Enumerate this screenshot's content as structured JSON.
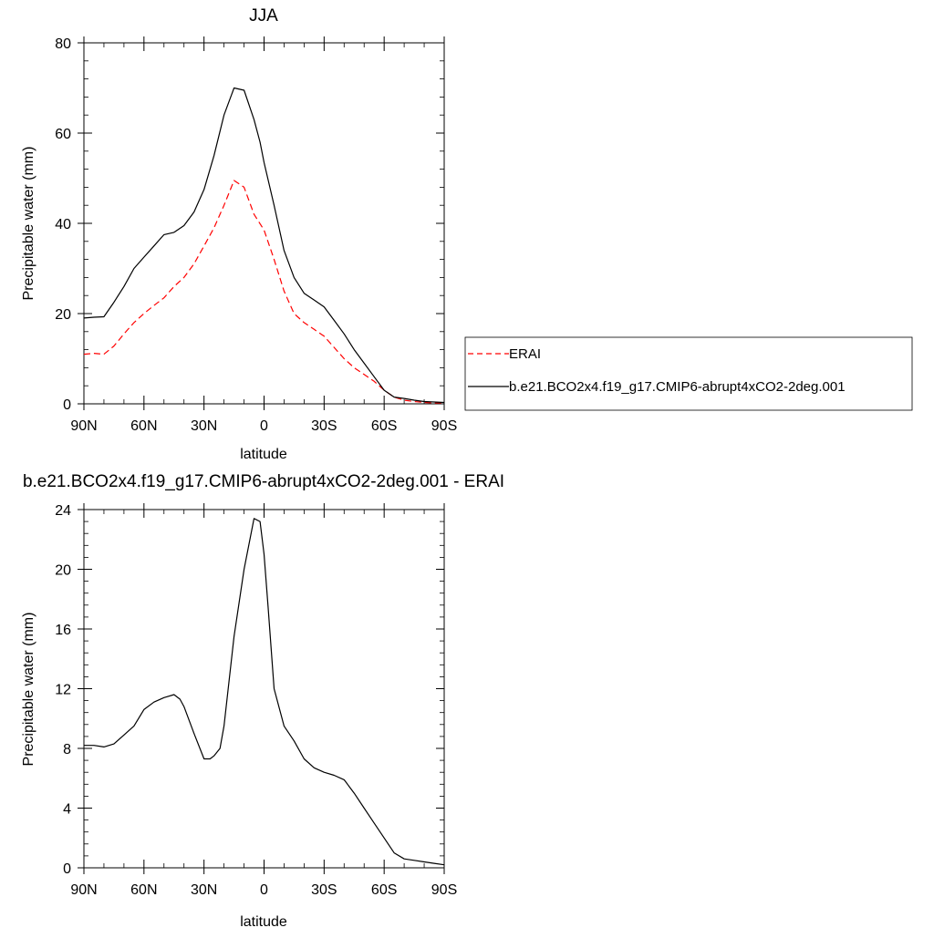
{
  "chart_data": [
    {
      "type": "line",
      "title": "JJA",
      "xlabel": "latitude",
      "ylabel": "Precipitable water (mm)",
      "xlim": [
        90,
        -90
      ],
      "ylim": [
        0,
        80
      ],
      "x_ticks": [
        90,
        60,
        30,
        0,
        -30,
        -60,
        -90
      ],
      "x_tick_labels": [
        "90N",
        "60N",
        "30N",
        "0",
        "30S",
        "60S",
        "90S"
      ],
      "y_ticks": [
        0,
        20,
        40,
        60,
        80
      ],
      "y_tick_labels": [
        "0",
        "20",
        "40",
        "60",
        "80"
      ],
      "legend_position": "right",
      "series": [
        {
          "name": "ERAI",
          "color": "#ff0000",
          "dash": "dashed",
          "x": [
            90,
            85,
            80,
            75,
            70,
            65,
            60,
            55,
            50,
            45,
            40,
            35,
            30,
            25,
            20,
            15,
            10,
            5,
            0,
            -5,
            -10,
            -15,
            -20,
            -25,
            -30,
            -35,
            -40,
            -45,
            -50,
            -55,
            -60,
            -65,
            -70,
            -75,
            -80,
            -85,
            -90
          ],
          "y": [
            11,
            11.2,
            11,
            12.8,
            15.5,
            18,
            20,
            21.8,
            23.5,
            26,
            28,
            31,
            35,
            39,
            44,
            49.5,
            48,
            42,
            38.5,
            32,
            25,
            20,
            18,
            16.5,
            15,
            12.5,
            10,
            8,
            6.5,
            5,
            3,
            1.5,
            0.8,
            0.5,
            0.3,
            0.2,
            0.2
          ]
        },
        {
          "name": "b.e21.BCO2x4.f19_g17.CMIP6-abrupt4xCO2-2deg.001",
          "color": "#000000",
          "dash": "solid",
          "x": [
            90,
            85,
            80,
            75,
            70,
            65,
            60,
            55,
            50,
            45,
            40,
            35,
            30,
            25,
            20,
            15,
            10,
            5,
            2,
            0,
            -5,
            -10,
            -15,
            -20,
            -25,
            -30,
            -35,
            -40,
            -45,
            -50,
            -55,
            -60,
            -65,
            -70,
            -75,
            -80,
            -85,
            -90
          ],
          "y": [
            19,
            19.2,
            19.3,
            22.5,
            26,
            30,
            32.5,
            35,
            37.5,
            38,
            39.5,
            42.5,
            47.5,
            55,
            64,
            70,
            69.5,
            63,
            58,
            53.5,
            44,
            34,
            28,
            24.5,
            23,
            21.5,
            18.5,
            15.5,
            12,
            9,
            6,
            3,
            1.5,
            1.2,
            0.8,
            0.5,
            0.4,
            0.3
          ]
        }
      ]
    },
    {
      "type": "line",
      "title": "b.e21.BCO2x4.f19_g17.CMIP6-abrupt4xCO2-2deg.001 - ERAI",
      "xlabel": "latitude",
      "ylabel": "Precipitable water (mm)",
      "xlim": [
        90,
        -90
      ],
      "ylim": [
        0,
        24
      ],
      "x_ticks": [
        90,
        60,
        30,
        0,
        -30,
        -60,
        -90
      ],
      "x_tick_labels": [
        "90N",
        "60N",
        "30N",
        "0",
        "30S",
        "60S",
        "90S"
      ],
      "y_ticks": [
        0,
        4,
        8,
        12,
        16,
        20,
        24
      ],
      "y_tick_labels": [
        "0",
        "4",
        "8",
        "12",
        "16",
        "20",
        "24"
      ],
      "series": [
        {
          "color": "#000000",
          "dash": "solid",
          "x": [
            90,
            85,
            80,
            75,
            70,
            65,
            60,
            55,
            50,
            45,
            42,
            40,
            35,
            30,
            27,
            25,
            22,
            20,
            15,
            10,
            5,
            2,
            0,
            -2,
            -5,
            -10,
            -15,
            -20,
            -25,
            -30,
            -35,
            -40,
            -45,
            -50,
            -55,
            -60,
            -65,
            -70,
            -75,
            -80,
            -85,
            -90
          ],
          "y": [
            8.2,
            8.2,
            8.1,
            8.3,
            8.9,
            9.5,
            10.6,
            11.1,
            11.4,
            11.6,
            11.3,
            10.8,
            9,
            7.3,
            7.3,
            7.5,
            8,
            9.5,
            15.5,
            20,
            23.4,
            23.2,
            21,
            17.5,
            12,
            9.5,
            8.5,
            7.3,
            6.7,
            6.4,
            6.2,
            5.9,
            5,
            4,
            3,
            2,
            1,
            0.6,
            0.5,
            0.4,
            0.3,
            0.2
          ]
        }
      ]
    }
  ]
}
